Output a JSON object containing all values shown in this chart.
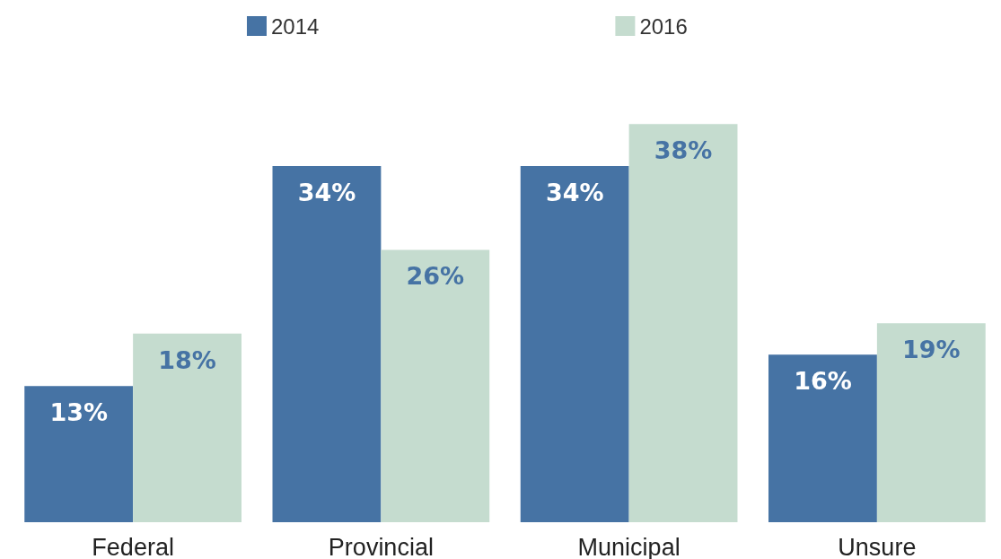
{
  "chart_data": {
    "type": "bar",
    "categories": [
      "Federal",
      "Provincial",
      "Municipal",
      "Unsure"
    ],
    "series": [
      {
        "name": "2014",
        "color": "#4673a4",
        "values": [
          13,
          34,
          34,
          16
        ],
        "value_labels": [
          "13%",
          "34%",
          "34%",
          "16%"
        ]
      },
      {
        "name": "2016",
        "color": "#c5dccf",
        "values": [
          18,
          26,
          38,
          19
        ],
        "value_labels": [
          "18%",
          "26%",
          "38%",
          "19%"
        ]
      }
    ],
    "legend": "top",
    "grid": false
  }
}
